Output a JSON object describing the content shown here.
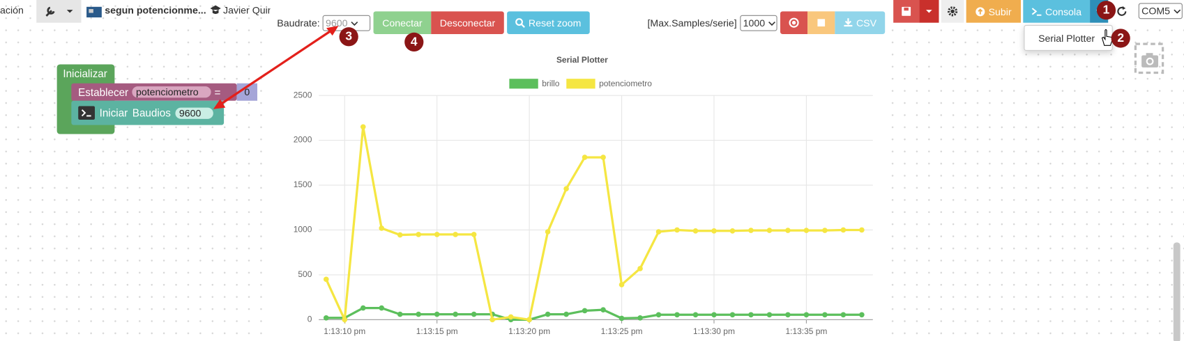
{
  "toolbar": {
    "project_menu": "ación",
    "project_name": "segun potencionme...",
    "author": "Javier Quir",
    "subir": "Subir",
    "consola": "Consola",
    "port": "COM5"
  },
  "console_menu": {
    "items": [
      "Serial Plotter"
    ]
  },
  "blocks": {
    "init": "Inicializar",
    "set": "Establecer",
    "variable": "potenciometro",
    "equals": "=",
    "value": "0",
    "start": "Iniciar",
    "baud_label": "Baudios",
    "baud": "9600"
  },
  "plotter_controls": {
    "baudrate_label": "Baudrate:",
    "baudrate": "9600",
    "connect": "Conectar",
    "disconnect": "Desconectar",
    "reset_zoom": "Reset zoom",
    "max_samples_label": "[Max.Samples/serie]",
    "max_samples": "1000",
    "csv": "CSV"
  },
  "annotations": [
    "1",
    "2",
    "3",
    "4"
  ],
  "chart_data": {
    "type": "line",
    "title": "Serial Plotter",
    "x": [
      "1:13:09 pm",
      "1:13:10 pm",
      "1:13:11 pm",
      "1:13:12 pm",
      "1:13:13 pm",
      "1:13:14 pm",
      "1:13:15 pm",
      "1:13:16 pm",
      "1:13:17 pm",
      "1:13:18 pm",
      "1:13:19 pm",
      "1:13:20 pm",
      "1:13:21 pm",
      "1:13:22 pm",
      "1:13:23 pm",
      "1:13:24 pm",
      "1:13:25 pm",
      "1:13:26 pm",
      "1:13:27 pm",
      "1:13:28 pm",
      "1:13:29 pm",
      "1:13:30 pm",
      "1:13:31 pm",
      "1:13:32 pm",
      "1:13:33 pm",
      "1:13:34 pm",
      "1:13:35 pm",
      "1:13:36 pm",
      "1:13:37 pm",
      "1:13:38 pm"
    ],
    "series": [
      {
        "name": "brillo",
        "color": "#5cbf5c",
        "values": [
          20,
          20,
          130,
          130,
          60,
          60,
          60,
          60,
          60,
          60,
          0,
          0,
          60,
          60,
          100,
          110,
          15,
          20,
          55,
          55,
          55,
          55,
          55,
          55,
          55,
          55,
          55,
          55,
          55,
          55
        ]
      },
      {
        "name": "potenciometro",
        "color": "#f5e642",
        "values": [
          450,
          0,
          2150,
          1020,
          945,
          950,
          950,
          950,
          950,
          0,
          30,
          0,
          980,
          1460,
          1810,
          1810,
          390,
          570,
          980,
          1000,
          990,
          990,
          990,
          995,
          995,
          995,
          995,
          995,
          1000,
          1000
        ]
      }
    ],
    "xlim": [
      "1:13:08.6 pm",
      "1:13:38.6 pm"
    ],
    "xticks": [
      "1:13:10 pm",
      "1:13:15 pm",
      "1:13:20 pm",
      "1:13:25 pm",
      "1:13:30 pm",
      "1:13:35 pm"
    ],
    "ylim": [
      0,
      2500
    ],
    "yticks": [
      0,
      500,
      1000,
      1500,
      2000,
      2500
    ],
    "grid": true,
    "legend": "top"
  }
}
